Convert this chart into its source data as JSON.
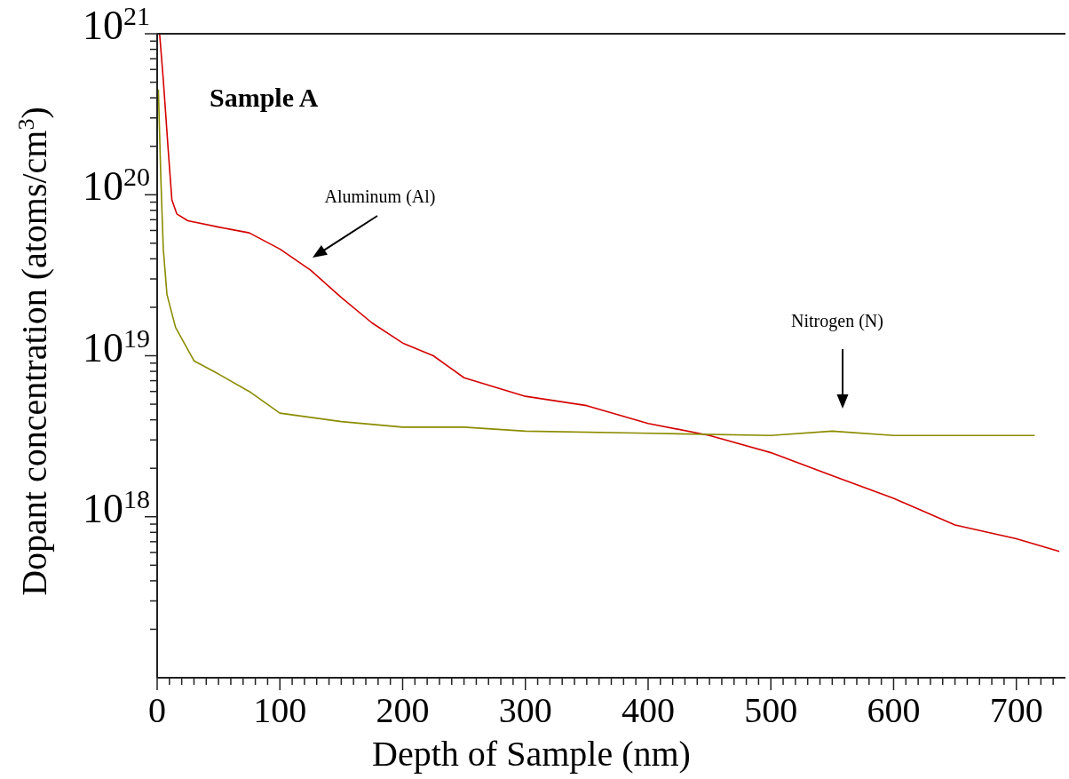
{
  "chart_data": {
    "type": "line",
    "title": "Sample A",
    "xlabel": "Depth of Sample (nm)",
    "ylabel": "Dopant concentration (atoms/cm$^{3}$)",
    "log": "y",
    "grid": false,
    "marker": "none",
    "line_style": "solid",
    "xlim": [
      0,
      740
    ],
    "ylim": [
      1e+17,
      1e+21
    ],
    "xticks": [
      0,
      {
        "value": 10,
        "label": null
      },
      {
        "value": 20,
        "label": null
      },
      {
        "value": 30,
        "label": null
      },
      {
        "value": 40,
        "label": null
      },
      {
        "value": 50,
        "label": null
      },
      {
        "value": 60,
        "label": null
      },
      {
        "value": 70,
        "label": null
      },
      {
        "value": 80,
        "label": null
      },
      {
        "value": 90,
        "label": null
      },
      100,
      {
        "value": 110,
        "label": null
      },
      {
        "value": 120,
        "label": null
      },
      {
        "value": 130,
        "label": null
      },
      {
        "value": 140,
        "label": null
      },
      {
        "value": 150,
        "label": null
      },
      {
        "value": 160,
        "label": null
      },
      {
        "value": 170,
        "label": null
      },
      {
        "value": 180,
        "label": null
      },
      {
        "value": 190,
        "label": null
      },
      200,
      {
        "value": 210,
        "label": null
      },
      {
        "value": 220,
        "label": null
      },
      {
        "value": 230,
        "label": null
      },
      {
        "value": 240,
        "label": null
      },
      {
        "value": 250,
        "label": null
      },
      {
        "value": 260,
        "label": null
      },
      {
        "value": 270,
        "label": null
      },
      {
        "value": 280,
        "label": null
      },
      {
        "value": 290,
        "label": null
      },
      300,
      {
        "value": 310,
        "label": null
      },
      {
        "value": 320,
        "label": null
      },
      {
        "value": 330,
        "label": null
      },
      {
        "value": 340,
        "label": null
      },
      {
        "value": 350,
        "label": null
      },
      {
        "value": 360,
        "label": null
      },
      {
        "value": 370,
        "label": null
      },
      {
        "value": 380,
        "label": null
      },
      {
        "value": 390,
        "label": null
      },
      400,
      {
        "value": 410,
        "label": null
      },
      {
        "value": 420,
        "label": null
      },
      {
        "value": 430,
        "label": null
      },
      {
        "value": 440,
        "label": null
      },
      {
        "value": 450,
        "label": null
      },
      {
        "value": 460,
        "label": null
      },
      {
        "value": 470,
        "label": null
      },
      {
        "value": 480,
        "label": null
      },
      {
        "value": 490,
        "label": null
      },
      500,
      {
        "value": 510,
        "label": null
      },
      {
        "value": 520,
        "label": null
      },
      {
        "value": 530,
        "label": null
      },
      {
        "value": 540,
        "label": null
      },
      {
        "value": 550,
        "label": null
      },
      {
        "value": 560,
        "label": null
      },
      {
        "value": 570,
        "label": null
      },
      {
        "value": 580,
        "label": null
      },
      {
        "value": 590,
        "label": null
      },
      600,
      {
        "value": 610,
        "label": null
      },
      {
        "value": 620,
        "label": null
      },
      {
        "value": 630,
        "label": null
      },
      {
        "value": 640,
        "label": null
      },
      {
        "value": 650,
        "label": null
      },
      {
        "value": 660,
        "label": null
      },
      {
        "value": 670,
        "label": null
      },
      {
        "value": 680,
        "label": null
      },
      {
        "value": 690,
        "label": null
      },
      700,
      {
        "value": 710,
        "label": null
      },
      {
        "value": 720,
        "label": null
      },
      {
        "value": 730,
        "label": null
      }
    ],
    "yticks": [
      {
        "value": 2e+17,
        "label": null
      },
      {
        "value": 3e+17,
        "label": null
      },
      {
        "value": 4e+17,
        "label": null
      },
      {
        "value": 5e+17,
        "label": null
      },
      {
        "value": 6e+17,
        "label": null
      },
      {
        "value": 7e+17,
        "label": null
      },
      {
        "value": 8e+17,
        "label": null
      },
      {
        "value": 9e+17,
        "label": null
      },
      {
        "value": 1e+18,
        "label": "10$^{18}$"
      },
      {
        "value": 2e+18,
        "label": null
      },
      {
        "value": 3e+18,
        "label": null
      },
      {
        "value": 4e+18,
        "label": null
      },
      {
        "value": 5e+18,
        "label": null
      },
      {
        "value": 6e+18,
        "label": null
      },
      {
        "value": 7e+18,
        "label": null
      },
      {
        "value": 8e+18,
        "label": null
      },
      {
        "value": 9e+18,
        "label": null
      },
      {
        "value": 1e+19,
        "label": "10$^{19}$"
      },
      {
        "value": 2e+19,
        "label": null
      },
      {
        "value": 3e+19,
        "label": null
      },
      {
        "value": 4e+19,
        "label": null
      },
      {
        "value": 5e+19,
        "label": null
      },
      {
        "value": 6e+19,
        "label": null
      },
      {
        "value": 7e+19,
        "label": null
      },
      {
        "value": 8e+19,
        "label": null
      },
      {
        "value": 9e+19,
        "label": null
      },
      {
        "value": 1e+20,
        "label": "10$^{20}$"
      },
      {
        "value": 2e+20,
        "label": null
      },
      {
        "value": 3e+20,
        "label": null
      },
      {
        "value": 4e+20,
        "label": null
      },
      {
        "value": 5e+20,
        "label": null
      },
      {
        "value": 6e+20,
        "label": null
      },
      {
        "value": 7e+20,
        "label": null
      },
      {
        "value": 8e+20,
        "label": null
      },
      {
        "value": 9e+20,
        "label": null
      },
      {
        "value": 1e+21,
        "label": "10$^{21}$"
      }
    ],
    "series": [
      {
        "color": "#d40000",
        "x": [
          2,
          5,
          9,
          12,
          16,
          25,
          50,
          75,
          100,
          125,
          150,
          175,
          200,
          225,
          250,
          300,
          350,
          400,
          450,
          500,
          550,
          600,
          650,
          700,
          735
        ],
        "values": [
          1e+21,
          5.2e+20,
          1.9e+20,
          9.3e+19,
          7.6e+19,
          6.9e+19,
          6.3e+19,
          5.8e+19,
          4.6e+19,
          3.4e+19,
          2.3e+19,
          1.6e+19,
          1.2e+19,
          1e+19,
          7.3e+18,
          5.6e+18,
          4.9e+18,
          3.8e+18,
          3.2e+18,
          2.5e+18,
          1.8e+18,
          1.3e+18,
          8.9e+17,
          7.3e+17,
          6.1e+17
        ]
      },
      {
        "color": "#8b8b00",
        "x": [
          1,
          3,
          5,
          8,
          15,
          30,
          50,
          75,
          100,
          150,
          200,
          250,
          300,
          400,
          500,
          550,
          600,
          715
        ],
        "values": [
          4.5e+20,
          1.27e+20,
          4.6e+19,
          2.4e+19,
          1.5e+19,
          9.3e+18,
          7.7e+18,
          6e+18,
          4.4e+18,
          3.9e+18,
          3.6e+18,
          3.6e+18,
          3.4e+18,
          3.3e+18,
          3.2e+18,
          3.4e+18,
          3.2e+18,
          3.2e+18
        ]
      }
    ],
    "annotations": [
      "Aluminum (Al)",
      "Nitrogen (N)"
    ]
  }
}
